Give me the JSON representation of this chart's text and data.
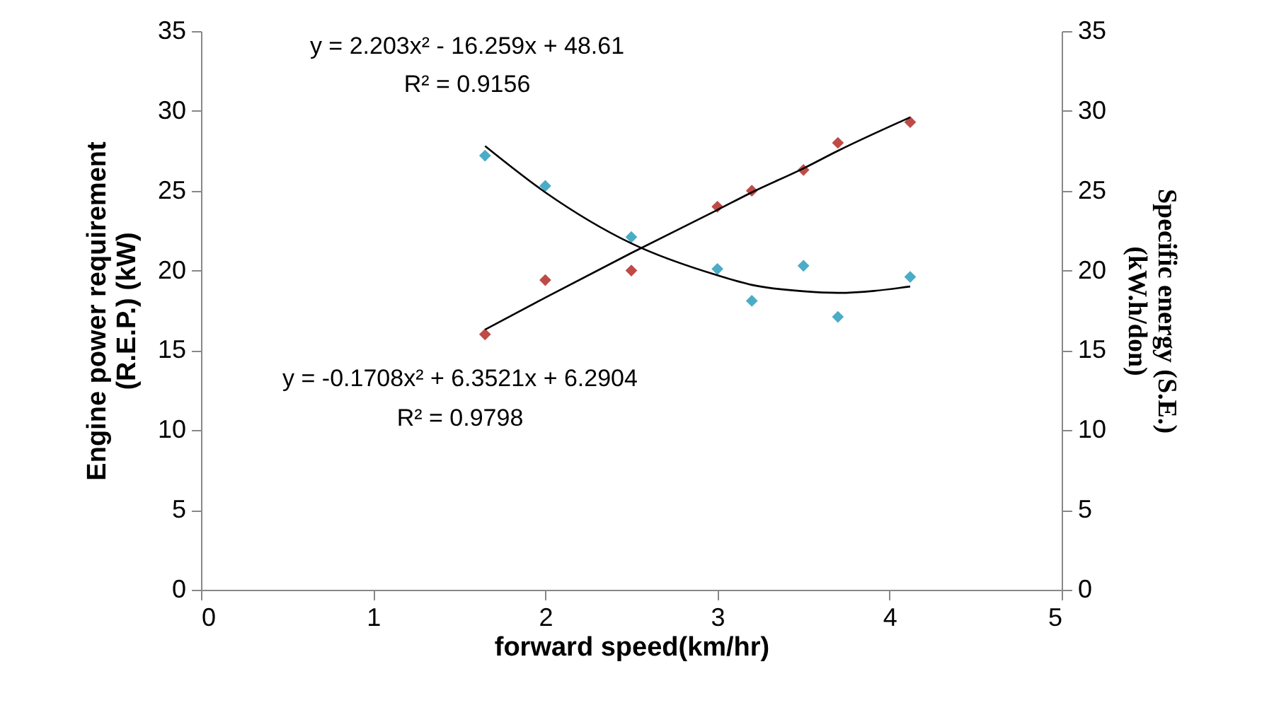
{
  "chart_data": {
    "type": "scatter",
    "xlabel": "forward speed(km/hr)",
    "ylabel": "Engine power requirement\n(R.E.P.) (kW)",
    "y2label": "Specific energy (S.E.)\n(kW.h/don)",
    "xlim": [
      0,
      5
    ],
    "xticks": [
      0,
      1,
      2,
      3,
      4,
      5
    ],
    "ylim": [
      0,
      35
    ],
    "yticks": [
      0,
      5,
      10,
      15,
      20,
      25,
      30,
      35
    ],
    "y2lim": [
      0,
      35
    ],
    "y2ticks": [
      0,
      5,
      10,
      15,
      20,
      25,
      30,
      35
    ],
    "grid": false,
    "marker": "diamond",
    "series": [
      {
        "color": "#be4b48",
        "x": [
          1.65,
          2.0,
          2.5,
          3.0,
          3.2,
          3.5,
          3.7,
          4.12
        ],
        "values": [
          16.0,
          19.4,
          20.0,
          24.0,
          25.0,
          26.3,
          28.0,
          29.3
        ]
      },
      {
        "type": "line",
        "color": "#000000",
        "marker": "none",
        "x": [
          1.65,
          2.0,
          2.5,
          3.0,
          3.2,
          3.5,
          3.7,
          4.12
        ],
        "values": [
          16.3,
          18.3,
          21.1,
          23.8,
          24.9,
          26.4,
          27.5,
          29.6
        ]
      },
      {
        "axis": "y2",
        "color": "#4bacc6",
        "x": [
          1.65,
          2.0,
          2.5,
          3.0,
          3.2,
          3.5,
          3.7,
          4.12
        ],
        "values": [
          27.2,
          25.3,
          22.1,
          20.1,
          18.1,
          20.3,
          17.1,
          19.6
        ]
      },
      {
        "type": "line",
        "axis": "y2",
        "color": "#000000",
        "marker": "none",
        "x": [
          1.65,
          2.0,
          2.5,
          3.0,
          3.2,
          3.5,
          3.7,
          4.12
        ],
        "values": [
          27.8,
          24.9,
          21.7,
          19.7,
          19.1,
          18.7,
          18.6,
          19.0
        ]
      }
    ],
    "annotations": [
      "y = 2.203x² - 16.259x + 48.61",
      "R² = 0.9156",
      "y = -0.1708x² + 6.3521x + 6.2904",
      "R² = 0.9798"
    ]
  }
}
